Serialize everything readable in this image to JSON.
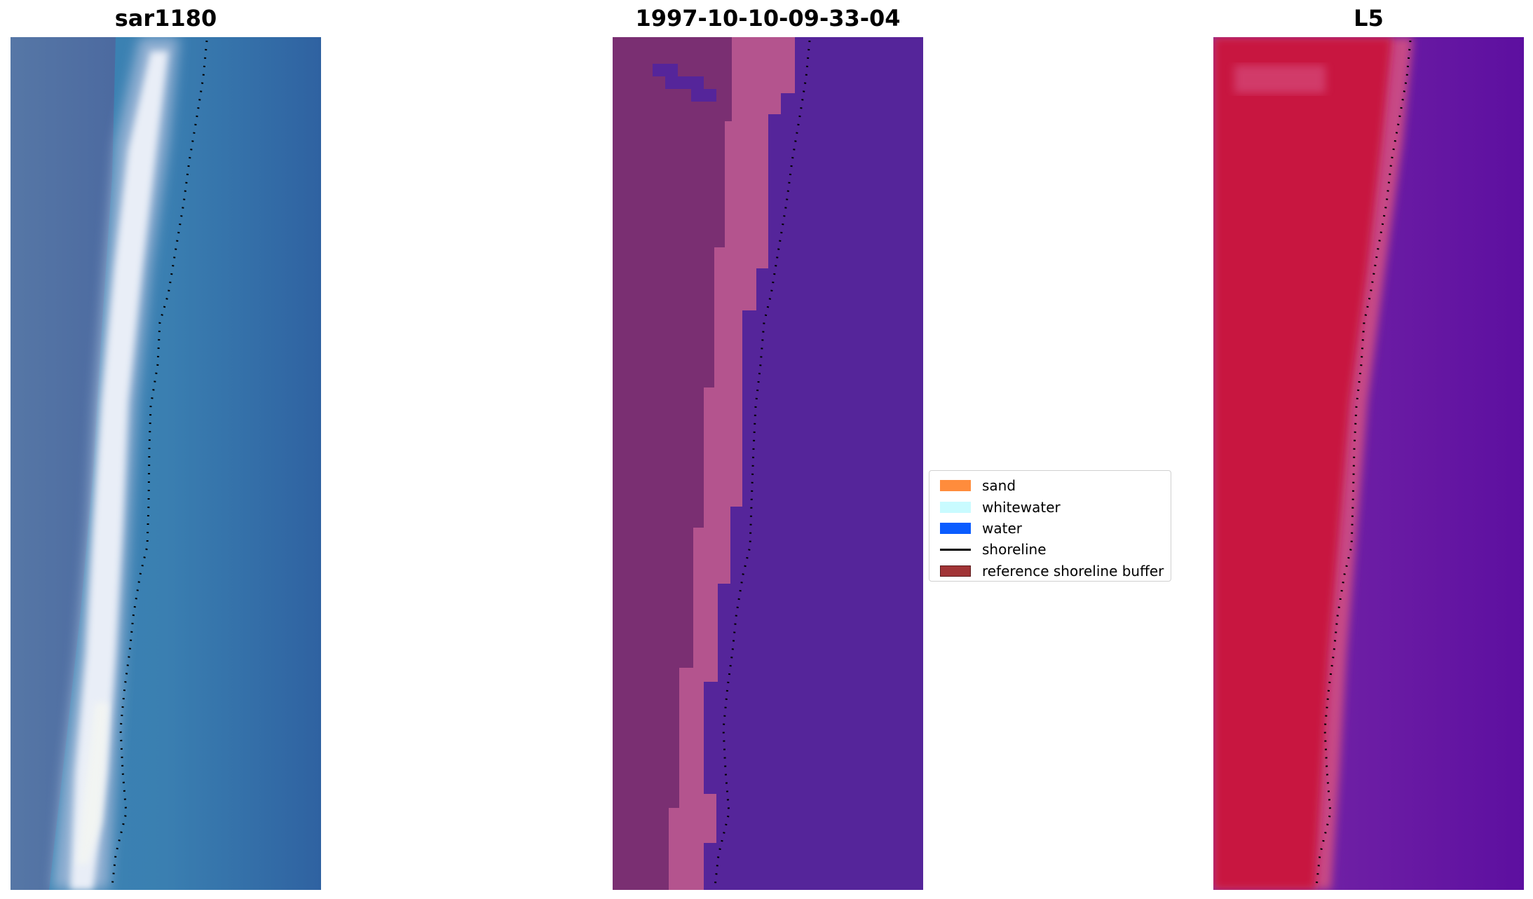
{
  "panels": [
    {
      "title": "sar1180",
      "kind": "rgb-image",
      "colors": {
        "land": "#4f6fa0",
        "surf": "#e8eef6",
        "water": "#2f6aa6",
        "water_light": "#3d86b4"
      }
    },
    {
      "title": "1997-10-10-09-33-04",
      "kind": "classified-image",
      "colors": {
        "land": "#7a2f72",
        "beach": "#b4548e",
        "water": "#55259a"
      }
    },
    {
      "title": "L5",
      "kind": "index-image",
      "colors": {
        "land": "#c8183f",
        "transition": "#c74a86",
        "water": "#6d1aa0"
      }
    }
  ],
  "legend": {
    "items": [
      {
        "label": "sand",
        "type": "patch",
        "color": "#ff8c3c"
      },
      {
        "label": "whitewater",
        "type": "patch",
        "color": "#c9fbff"
      },
      {
        "label": "water",
        "type": "patch",
        "color": "#0a5cff"
      },
      {
        "label": "shoreline",
        "type": "line",
        "color": "#000000"
      },
      {
        "label": "reference shoreline buffer",
        "type": "patch",
        "color": "#a13436",
        "edge": "#5c1a1b"
      }
    ]
  }
}
